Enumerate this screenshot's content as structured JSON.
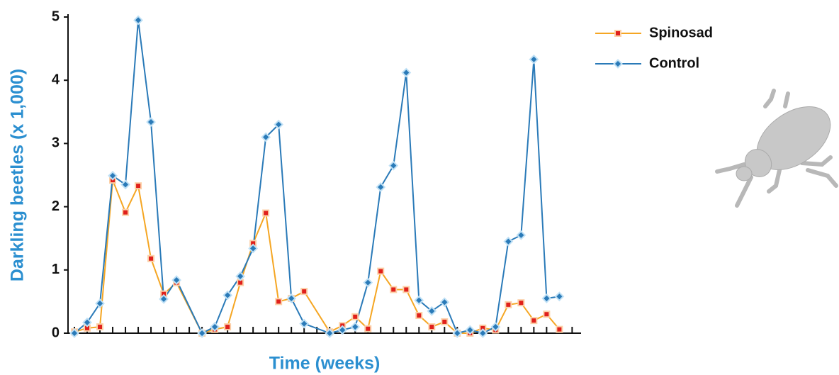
{
  "chart_data": {
    "type": "line",
    "y_label": "Darkling beetles (x 1,000)",
    "x_label": "Time (weeks)",
    "xlim": [
      -0.5,
      39.7
    ],
    "xticks": [
      0,
      1,
      2,
      3,
      4,
      5,
      6,
      7,
      8,
      9,
      10,
      11,
      12,
      13,
      14,
      15,
      16,
      17,
      18,
      19,
      20,
      21,
      22,
      23,
      24,
      25,
      26,
      27,
      28,
      29,
      30,
      31,
      32,
      33,
      34,
      35,
      36,
      37,
      38,
      39
    ],
    "ylim": [
      0,
      5
    ],
    "yticks": [
      0,
      1,
      2,
      3,
      4,
      5
    ],
    "grid": false,
    "legend": "top-right",
    "series": [
      {
        "name": "Spinosad",
        "color": "#f5a623",
        "marker": "square",
        "x": [
          0,
          1,
          2,
          3,
          4,
          5,
          6,
          7,
          8,
          10,
          11,
          12,
          13,
          14,
          15,
          16,
          17,
          18,
          20,
          21,
          22,
          23,
          24,
          25,
          26,
          27,
          28,
          29,
          30,
          31,
          32,
          33,
          34,
          35,
          36,
          37,
          38
        ],
        "values": [
          0.02,
          0.08,
          0.1,
          2.42,
          1.91,
          2.33,
          1.18,
          0.62,
          0.8,
          0.0,
          0.06,
          0.1,
          0.8,
          1.42,
          1.9,
          0.5,
          0.55,
          0.66,
          0.02,
          0.12,
          0.26,
          0.07,
          0.98,
          0.69,
          0.69,
          0.28,
          0.1,
          0.18,
          0.0,
          0.0,
          0.08,
          0.05,
          0.45,
          0.48,
          0.2,
          0.3,
          0.06
        ]
      },
      {
        "name": "Control",
        "color": "#2a7ab8",
        "marker": "diamond",
        "x": [
          0,
          1,
          2,
          3,
          4,
          5,
          6,
          7,
          8,
          10,
          11,
          12,
          13,
          14,
          15,
          16,
          17,
          18,
          20,
          21,
          22,
          23,
          24,
          25,
          26,
          27,
          28,
          29,
          30,
          31,
          32,
          33,
          34,
          35,
          36,
          37,
          38
        ],
        "values": [
          0.0,
          0.17,
          0.47,
          2.49,
          2.35,
          4.95,
          3.34,
          0.54,
          0.84,
          0.0,
          0.1,
          0.6,
          0.9,
          1.34,
          3.1,
          3.3,
          0.55,
          0.15,
          0.0,
          0.05,
          0.1,
          0.8,
          2.31,
          2.65,
          4.12,
          0.52,
          0.35,
          0.49,
          0.0,
          0.05,
          0.0,
          0.1,
          1.45,
          1.55,
          4.33,
          0.55,
          0.58
        ]
      }
    ]
  }
}
